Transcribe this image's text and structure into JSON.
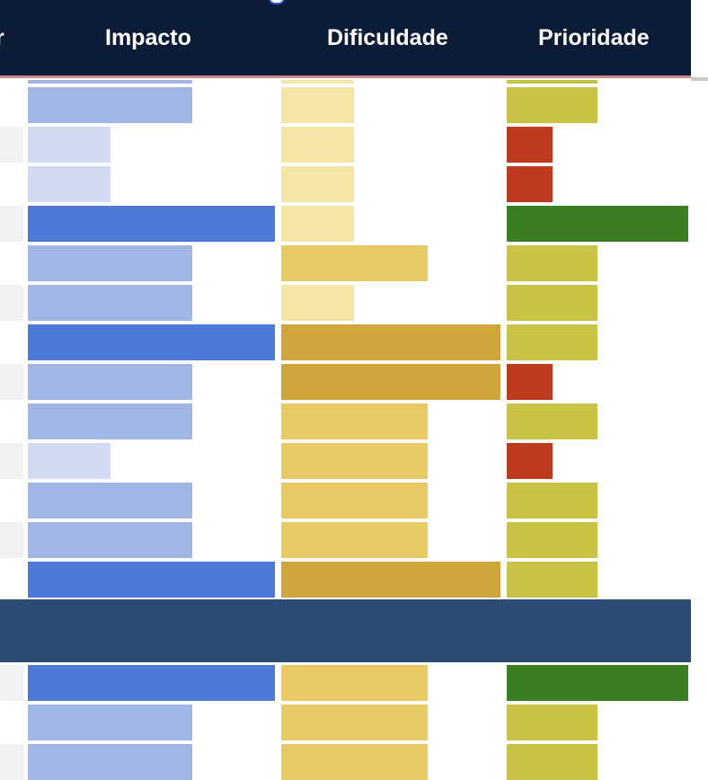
{
  "table": {
    "headers": {
      "prev_cut": "r",
      "impacto": "Impacto",
      "dificuldade": "Dificuldade",
      "prioridade": "Prioridade"
    },
    "columns": [
      {
        "key": "impacto",
        "max_level": 3,
        "colors": [
          "#d1daf0",
          "#a2b6e6",
          "#4f79d8"
        ]
      },
      {
        "key": "dificuldade",
        "max_level": 3,
        "colors": [
          "#f5e6a6",
          "#e9c963",
          "#cea63c"
        ]
      },
      {
        "key": "prioridade",
        "max_level": 4,
        "colors": [
          "#bc3a1e",
          "#c8c246",
          "#c8c246",
          "#3a7e21"
        ]
      }
    ],
    "rows_before_group": [
      {
        "impacto": 2,
        "dificuldade": 1,
        "prioridade": 2,
        "stub": false
      },
      {
        "impacto": 1,
        "dificuldade": 1,
        "prioridade": 1,
        "stub": true
      },
      {
        "impacto": 1,
        "dificuldade": 1,
        "prioridade": 1,
        "stub": false
      },
      {
        "impacto": 3,
        "dificuldade": 1,
        "prioridade": 4,
        "stub": true
      },
      {
        "impacto": 2,
        "dificuldade": 2,
        "prioridade": 2,
        "stub": false
      },
      {
        "impacto": 2,
        "dificuldade": 1,
        "prioridade": 2,
        "stub": true
      },
      {
        "impacto": 3,
        "dificuldade": 3,
        "prioridade": 2,
        "stub": false
      },
      {
        "impacto": 2,
        "dificuldade": 3,
        "prioridade": 1,
        "stub": true
      },
      {
        "impacto": 2,
        "dificuldade": 2,
        "prioridade": 2,
        "stub": false
      },
      {
        "impacto": 1,
        "dificuldade": 2,
        "prioridade": 1,
        "stub": true
      },
      {
        "impacto": 2,
        "dificuldade": 2,
        "prioridade": 2,
        "stub": false
      },
      {
        "impacto": 2,
        "dificuldade": 2,
        "prioridade": 2,
        "stub": true
      },
      {
        "impacto": 3,
        "dificuldade": 3,
        "prioridade": 2,
        "stub": false
      }
    ],
    "rows_after_group": [
      {
        "impacto": 3,
        "dificuldade": 2,
        "prioridade": 4,
        "stub": true
      },
      {
        "impacto": 2,
        "dificuldade": 2,
        "prioridade": 2,
        "stub": false
      },
      {
        "impacto": 2,
        "dificuldade": 2,
        "prioridade": 2,
        "stub": true
      }
    ],
    "group_band_color": "#2c4c74",
    "header_color": "#0c1c36"
  }
}
